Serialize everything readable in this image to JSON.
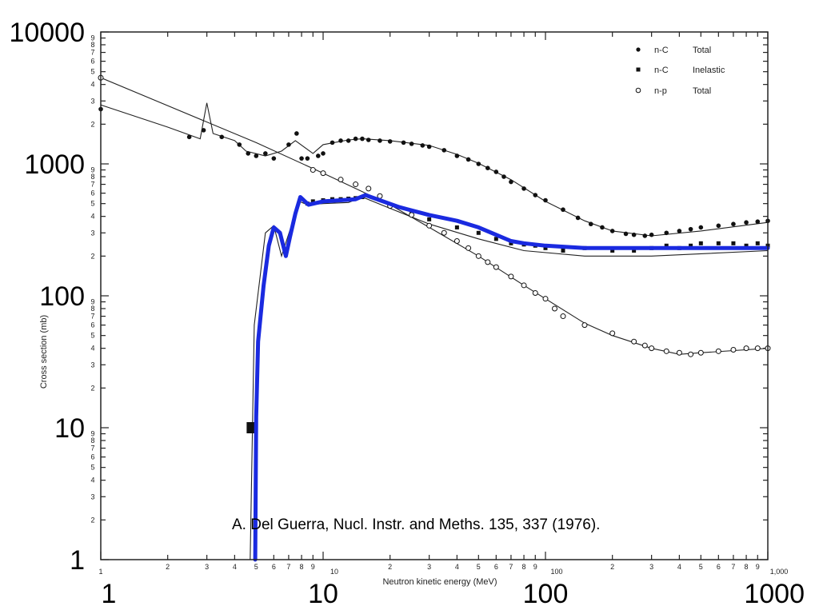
{
  "chart_data": {
    "type": "scatter",
    "x_scale": "log",
    "y_scale": "log",
    "xlim": [
      1,
      1000
    ],
    "ylim": [
      1,
      10000
    ],
    "xlabel": "Neutron kinetic energy (MeV)",
    "ylabel": "Cross section (mb)",
    "x_major_ticks": [
      "1",
      "10",
      "100",
      "1000"
    ],
    "y_major_ticks": [
      "1",
      "10",
      "100",
      "1000",
      "10000"
    ],
    "x_small_major_labels": [
      "1",
      "10",
      "100",
      "1,000"
    ],
    "minor_tick_labels": [
      "2",
      "3",
      "4",
      "5",
      "6",
      "7",
      "8",
      "9"
    ],
    "annotation": "A. Del Guerra, Nucl. Instr. and Meths. 135, 337 (1976).",
    "legend": {
      "position": "top-right",
      "entries": [
        {
          "marker": "filled-circle",
          "reaction": "n-C",
          "kind": "Total"
        },
        {
          "marker": "filled-square",
          "reaction": "n-C",
          "kind": "Inelastic"
        },
        {
          "marker": "open-circle",
          "reaction": "n-p",
          "kind": "Total"
        }
      ]
    },
    "series": [
      {
        "name": "n-C Total",
        "marker": "filled-circle",
        "points": [
          [
            1,
            2600
          ],
          [
            2.5,
            1600
          ],
          [
            2.9,
            1800
          ],
          [
            3.5,
            1600
          ],
          [
            4.2,
            1400
          ],
          [
            4.6,
            1200
          ],
          [
            5.0,
            1150
          ],
          [
            5.5,
            1200
          ],
          [
            6.0,
            1100
          ],
          [
            7.0,
            1400
          ],
          [
            7.6,
            1700
          ],
          [
            8.0,
            1100
          ],
          [
            8.5,
            1100
          ],
          [
            9.5,
            1150
          ],
          [
            10,
            1200
          ],
          [
            11,
            1450
          ],
          [
            12,
            1500
          ],
          [
            13,
            1500
          ],
          [
            14,
            1550
          ],
          [
            15,
            1550
          ],
          [
            16,
            1520
          ],
          [
            18,
            1500
          ],
          [
            20,
            1480
          ],
          [
            23,
            1450
          ],
          [
            25,
            1420
          ],
          [
            28,
            1380
          ],
          [
            30,
            1350
          ],
          [
            35,
            1270
          ],
          [
            40,
            1150
          ],
          [
            45,
            1080
          ],
          [
            50,
            1000
          ],
          [
            55,
            930
          ],
          [
            60,
            870
          ],
          [
            65,
            800
          ],
          [
            70,
            730
          ],
          [
            80,
            650
          ],
          [
            90,
            580
          ],
          [
            100,
            530
          ],
          [
            120,
            450
          ],
          [
            140,
            390
          ],
          [
            160,
            350
          ],
          [
            180,
            330
          ],
          [
            200,
            310
          ],
          [
            230,
            295
          ],
          [
            250,
            290
          ],
          [
            280,
            285
          ],
          [
            300,
            290
          ],
          [
            350,
            300
          ],
          [
            400,
            310
          ],
          [
            450,
            320
          ],
          [
            500,
            330
          ],
          [
            600,
            340
          ],
          [
            700,
            350
          ],
          [
            800,
            360
          ],
          [
            900,
            365
          ],
          [
            1000,
            370
          ]
        ],
        "curve": [
          [
            1,
            2800
          ],
          [
            2,
            1900
          ],
          [
            2.8,
            1550
          ],
          [
            3.0,
            2900
          ],
          [
            3.2,
            1700
          ],
          [
            4.0,
            1500
          ],
          [
            4.5,
            1250
          ],
          [
            5.5,
            1150
          ],
          [
            6.5,
            1250
          ],
          [
            7.5,
            1500
          ],
          [
            9,
            1200
          ],
          [
            10,
            1400
          ],
          [
            13,
            1520
          ],
          [
            15,
            1550
          ],
          [
            20,
            1500
          ],
          [
            30,
            1380
          ],
          [
            40,
            1180
          ],
          [
            50,
            1010
          ],
          [
            70,
            760
          ],
          [
            100,
            520
          ],
          [
            150,
            370
          ],
          [
            200,
            310
          ],
          [
            300,
            285
          ],
          [
            500,
            310
          ],
          [
            1000,
            360
          ]
        ]
      },
      {
        "name": "n-C Inelastic",
        "marker": "filled-square",
        "points": [
          [
            4.8,
            10
          ],
          [
            8.5,
            500
          ],
          [
            9,
            520
          ],
          [
            10,
            530
          ],
          [
            11,
            540
          ],
          [
            12,
            540
          ],
          [
            13,
            545
          ],
          [
            14,
            550
          ],
          [
            15,
            560
          ],
          [
            20,
            480
          ],
          [
            25,
            430
          ],
          [
            30,
            380
          ],
          [
            40,
            330
          ],
          [
            50,
            300
          ],
          [
            60,
            270
          ],
          [
            70,
            250
          ],
          [
            80,
            245
          ],
          [
            90,
            240
          ],
          [
            100,
            230
          ],
          [
            120,
            220
          ],
          [
            150,
            230
          ],
          [
            200,
            220
          ],
          [
            250,
            220
          ],
          [
            300,
            230
          ],
          [
            350,
            240
          ],
          [
            400,
            230
          ],
          [
            450,
            240
          ],
          [
            500,
            250
          ],
          [
            600,
            250
          ],
          [
            700,
            250
          ],
          [
            800,
            240
          ],
          [
            900,
            250
          ],
          [
            1000,
            240
          ]
        ],
        "curve": [
          [
            4.7,
            1
          ],
          [
            4.9,
            60
          ],
          [
            5.5,
            300
          ],
          [
            6.0,
            340
          ],
          [
            6.5,
            200
          ],
          [
            7.2,
            340
          ],
          [
            7.8,
            520
          ],
          [
            8.5,
            490
          ],
          [
            10,
            500
          ],
          [
            13,
            510
          ],
          [
            15,
            560
          ],
          [
            20,
            460
          ],
          [
            30,
            350
          ],
          [
            50,
            270
          ],
          [
            80,
            220
          ],
          [
            150,
            200
          ],
          [
            300,
            200
          ],
          [
            1000,
            220
          ]
        ]
      },
      {
        "name": "n-p Total",
        "marker": "open-circle",
        "points": [
          [
            1,
            4500
          ],
          [
            9,
            900
          ],
          [
            10,
            850
          ],
          [
            12,
            760
          ],
          [
            14,
            700
          ],
          [
            16,
            650
          ],
          [
            18,
            570
          ],
          [
            20,
            480
          ],
          [
            25,
            410
          ],
          [
            30,
            340
          ],
          [
            35,
            300
          ],
          [
            40,
            260
          ],
          [
            45,
            230
          ],
          [
            50,
            200
          ],
          [
            55,
            180
          ],
          [
            60,
            165
          ],
          [
            70,
            140
          ],
          [
            80,
            120
          ],
          [
            90,
            105
          ],
          [
            100,
            95
          ],
          [
            110,
            80
          ],
          [
            120,
            70
          ],
          [
            150,
            60
          ],
          [
            200,
            52
          ],
          [
            250,
            45
          ],
          [
            280,
            42
          ],
          [
            300,
            40
          ],
          [
            350,
            38
          ],
          [
            400,
            37
          ],
          [
            450,
            36
          ],
          [
            500,
            37
          ],
          [
            600,
            38
          ],
          [
            700,
            39
          ],
          [
            800,
            40
          ],
          [
            900,
            40
          ],
          [
            1000,
            40
          ]
        ],
        "curve": [
          [
            1,
            4500
          ],
          [
            5,
            1450
          ],
          [
            10,
            850
          ],
          [
            20,
            490
          ],
          [
            30,
            330
          ],
          [
            50,
            200
          ],
          [
            80,
            120
          ],
          [
            100,
            95
          ],
          [
            150,
            62
          ],
          [
            200,
            50
          ],
          [
            300,
            40
          ],
          [
            400,
            36
          ],
          [
            500,
            37
          ],
          [
            1000,
            40
          ]
        ]
      },
      {
        "name": "",
        "marker": "blue-line",
        "color": "#1a2ae0",
        "curve": [
          [
            4.95,
            1
          ],
          [
            5.0,
            12
          ],
          [
            5.1,
            45
          ],
          [
            5.4,
            120
          ],
          [
            5.7,
            240
          ],
          [
            6.0,
            330
          ],
          [
            6.4,
            300
          ],
          [
            6.8,
            200
          ],
          [
            7.1,
            280
          ],
          [
            7.5,
            420
          ],
          [
            7.9,
            560
          ],
          [
            8.6,
            490
          ],
          [
            10,
            520
          ],
          [
            12,
            530
          ],
          [
            14,
            540
          ],
          [
            15.5,
            580
          ],
          [
            18,
            530
          ],
          [
            22,
            470
          ],
          [
            30,
            410
          ],
          [
            40,
            370
          ],
          [
            50,
            330
          ],
          [
            60,
            290
          ],
          [
            70,
            260
          ],
          [
            80,
            250
          ],
          [
            100,
            240
          ],
          [
            150,
            230
          ],
          [
            200,
            230
          ],
          [
            300,
            230
          ],
          [
            500,
            230
          ],
          [
            1000,
            230
          ]
        ]
      }
    ]
  }
}
